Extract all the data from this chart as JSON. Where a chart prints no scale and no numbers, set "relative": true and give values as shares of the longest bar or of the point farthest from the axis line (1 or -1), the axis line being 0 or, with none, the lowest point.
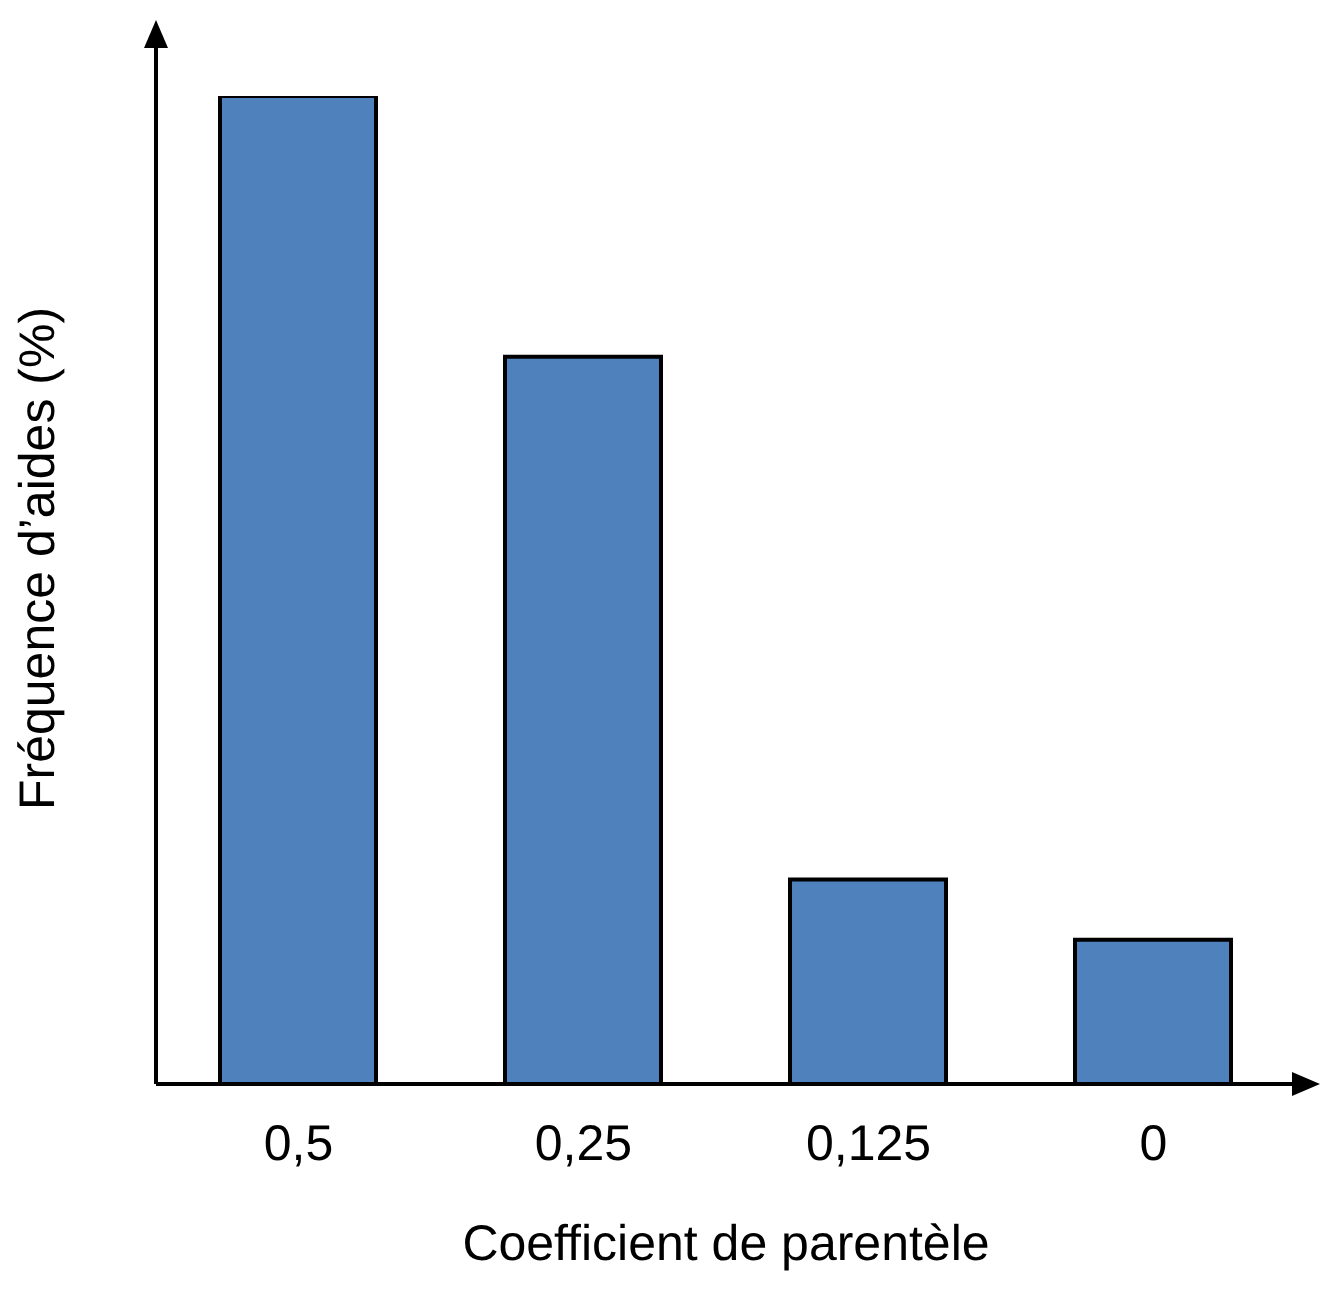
{
  "chart_data": {
    "type": "bar",
    "relative": true,
    "xlabel": "Coefficient de parentèle",
    "ylabel": "Fréquence d’aides (%)",
    "categories": [
      "0,5",
      "0,25",
      "0,125",
      "0"
    ],
    "values": [
      1,
      0.736,
      0.207,
      0.146
    ],
    "color": "#4f81bd",
    "grid": false,
    "legend": false
  }
}
